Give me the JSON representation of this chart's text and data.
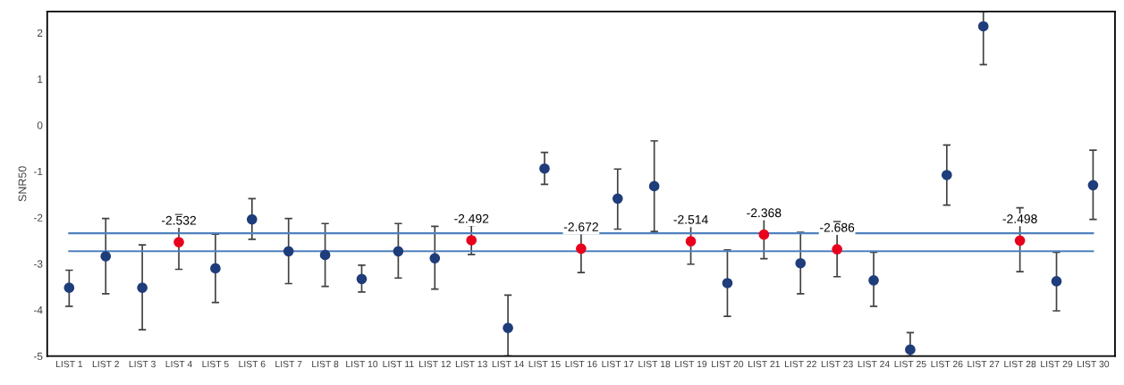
{
  "chart_data": {
    "type": "scatter",
    "ylabel": "SNR50",
    "categories": [
      "LIST 1",
      "LIST 2",
      "LIST 3",
      "LIST 4",
      "LIST 5",
      "LIST 6",
      "LIST 7",
      "LIST 8",
      "LIST 10",
      "LIST 11",
      "LIST 12",
      "LIST 13",
      "LIST 14",
      "LIST 15",
      "LIST 16",
      "LIST 17",
      "LIST 18",
      "LIST 19",
      "LIST 20",
      "LIST 21",
      "LIST 22",
      "LIST 23",
      "LIST 24",
      "LIST 25",
      "LIST 26",
      "LIST 27",
      "LIST 28",
      "LIST 29",
      "LIST 30"
    ],
    "series": [
      {
        "color": "#1f3d7a",
        "values": [
          -3.52,
          -2.84,
          -3.52,
          null,
          -3.1,
          -2.04,
          -2.73,
          -2.81,
          -3.33,
          -2.73,
          -2.88,
          null,
          -4.39,
          -0.94,
          null,
          -1.59,
          -1.32,
          null,
          -3.42,
          null,
          -2.99,
          null,
          -3.36,
          -4.86,
          -1.08,
          2.14,
          null,
          -3.38,
          -1.3
        ],
        "errors": [
          [
            -3.92,
            -3.14
          ],
          [
            -3.65,
            -2.02
          ],
          [
            -4.43,
            -2.59
          ],
          null,
          [
            -3.84,
            -2.36
          ],
          [
            -2.47,
            -1.59
          ],
          [
            -3.43,
            -2.02
          ],
          [
            -3.49,
            -2.13
          ],
          [
            -3.61,
            -3.03
          ],
          [
            -3.31,
            -2.13
          ],
          [
            -3.55,
            -2.19
          ],
          null,
          [
            -5,
            -3.68
          ],
          [
            -1.28,
            -0.59
          ],
          null,
          [
            -2.25,
            -0.95
          ],
          [
            -2.3,
            -0.34
          ],
          null,
          [
            -4.14,
            -2.7
          ],
          null,
          [
            -3.65,
            -2.32
          ],
          null,
          [
            -3.92,
            -2.75
          ],
          [
            -5,
            -4.49
          ],
          [
            -1.73,
            -0.43
          ],
          [
            1.31,
            2.46
          ],
          null,
          [
            -4.02,
            -2.75
          ],
          [
            -2.04,
            -0.54
          ]
        ]
      },
      {
        "color": "#e8001c",
        "values": [
          null,
          null,
          null,
          -2.532,
          null,
          null,
          null,
          null,
          null,
          null,
          null,
          -2.492,
          null,
          null,
          -2.672,
          null,
          null,
          -2.514,
          null,
          -2.368,
          null,
          -2.686,
          null,
          null,
          null,
          null,
          -2.498,
          null,
          null
        ],
        "errors": [
          null,
          null,
          null,
          [
            -3.12,
            -1.94
          ],
          null,
          null,
          null,
          null,
          null,
          null,
          null,
          [
            -2.8,
            -2.17
          ],
          null,
          null,
          [
            -3.19,
            -2.15
          ],
          null,
          null,
          [
            -3.01,
            -2.02
          ],
          null,
          [
            -2.89,
            -1.85
          ],
          null,
          [
            -3.28,
            -2.09
          ],
          null,
          null,
          null,
          null,
          [
            -3.17,
            -1.79
          ],
          null,
          null
        ],
        "value_labels": [
          null,
          null,
          null,
          "-2.532",
          null,
          null,
          null,
          null,
          null,
          null,
          null,
          "-2.492",
          null,
          null,
          "-2.672",
          null,
          null,
          "-2.514",
          null,
          "-2.368",
          null,
          "-2.686",
          null,
          null,
          null,
          null,
          "-2.498",
          null,
          null
        ]
      }
    ],
    "ylim": [
      -5,
      2.46
    ],
    "yticks": [
      -5,
      -4,
      -3,
      -2,
      -1,
      0,
      1,
      2
    ],
    "ref_lines": [
      {
        "axis": "y",
        "value": -2.34,
        "color": "#4f81bd"
      },
      {
        "axis": "y",
        "value": -2.73,
        "color": "#4f81bd"
      }
    ],
    "grid": false,
    "marker": "circle"
  }
}
